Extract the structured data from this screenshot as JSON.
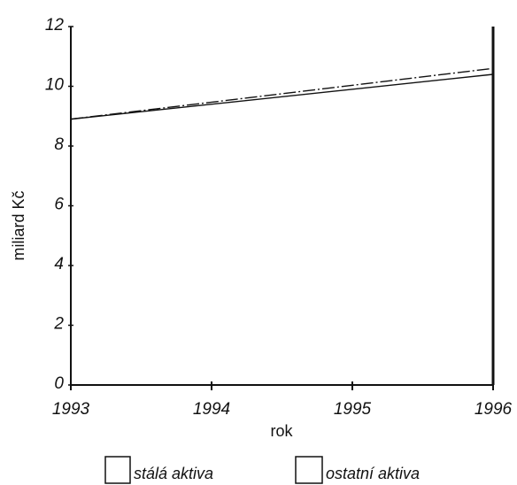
{
  "chart_data": {
    "type": "line",
    "x": [
      1993,
      1996
    ],
    "xticks": [
      "1993",
      "1994",
      "1995",
      "1996"
    ],
    "yticks": [
      "0",
      "2",
      "4",
      "6",
      "8",
      "10",
      "12"
    ],
    "xlabel": "rok",
    "ylabel": "miliard Kč",
    "ylim": [
      0,
      12
    ],
    "xlim": [
      1993,
      1996
    ],
    "grid": false,
    "legend_position": "bottom",
    "series": [
      {
        "name": "stálá aktiva",
        "values": [
          8.9,
          10.4
        ],
        "style": "solid",
        "color": "#111111"
      },
      {
        "name": "ostatní aktiva",
        "values": [
          8.9,
          10.6
        ],
        "style": "dashed",
        "color": "#111111"
      }
    ]
  }
}
